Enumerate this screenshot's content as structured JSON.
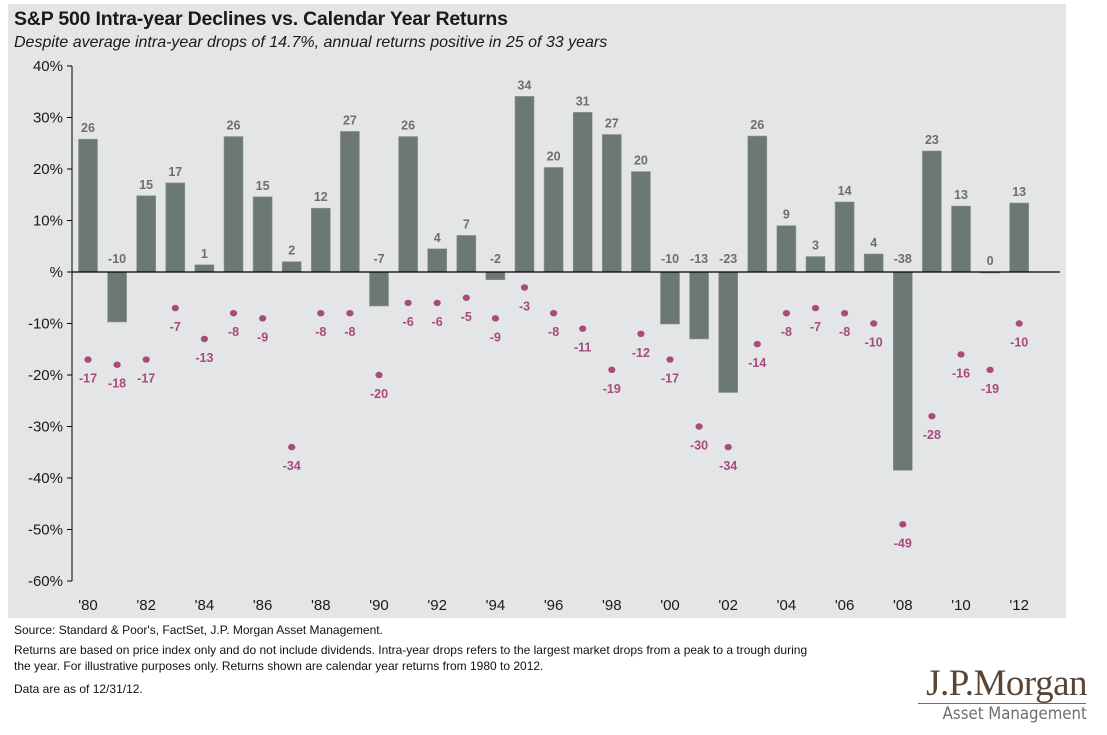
{
  "colors": {
    "panel_bg": "#e4e5e7",
    "bar": "#6b7875",
    "bar_label": "#6e6e6e",
    "dot": "#a84a7b",
    "axis": "#000000"
  },
  "chart_data": {
    "type": "bar",
    "title": "S&P 500 Intra-year Declines vs. Calendar Year Returns",
    "subtitle": "Despite average intra-year drops of 14.7%, annual returns positive in 25 of 33 years",
    "xlabel": "",
    "ylabel": "",
    "ylim": [
      -60,
      40
    ],
    "grid": false,
    "yticks": [
      40,
      30,
      20,
      10,
      0,
      -10,
      -20,
      -30,
      -40,
      -50,
      -60
    ],
    "ytick_labels": [
      "40%",
      "30%",
      "20%",
      "10%",
      "%",
      "-10%",
      "-20%",
      "-30%",
      "-40%",
      "-50%",
      "-60%"
    ],
    "years": [
      1980,
      1981,
      1982,
      1983,
      1984,
      1985,
      1986,
      1987,
      1988,
      1989,
      1990,
      1991,
      1992,
      1993,
      1994,
      1995,
      1996,
      1997,
      1998,
      1999,
      2000,
      2001,
      2002,
      2003,
      2004,
      2005,
      2006,
      2007,
      2008,
      2009,
      2010,
      2011,
      2012
    ],
    "xtick_labels": [
      {
        "year": 1980,
        "label": "'80"
      },
      {
        "year": 1982,
        "label": "'82"
      },
      {
        "year": 1984,
        "label": "'84"
      },
      {
        "year": 1986,
        "label": "'86"
      },
      {
        "year": 1988,
        "label": "'88"
      },
      {
        "year": 1990,
        "label": "'90"
      },
      {
        "year": 1992,
        "label": "'92"
      },
      {
        "year": 1994,
        "label": "'94"
      },
      {
        "year": 1996,
        "label": "'96"
      },
      {
        "year": 1998,
        "label": "'98"
      },
      {
        "year": 2000,
        "label": "'00"
      },
      {
        "year": 2002,
        "label": "'02"
      },
      {
        "year": 2004,
        "label": "'04"
      },
      {
        "year": 2006,
        "label": "'06"
      },
      {
        "year": 2008,
        "label": "'08"
      },
      {
        "year": 2010,
        "label": "'10"
      },
      {
        "year": 2012,
        "label": "'12"
      }
    ],
    "series": [
      {
        "name": "Calendar year return",
        "kind": "bar",
        "values": [
          25.8,
          -9.7,
          14.8,
          17.3,
          1.4,
          26.3,
          14.6,
          2.0,
          12.4,
          27.3,
          -6.6,
          26.3,
          4.5,
          7.1,
          -1.5,
          34.1,
          20.3,
          31.0,
          26.7,
          19.5,
          -10.1,
          -13.0,
          -23.4,
          26.4,
          9.0,
          3.0,
          13.6,
          3.5,
          -38.5,
          23.5,
          12.8,
          0.0,
          13.4
        ],
        "labels": [
          "26",
          "-10",
          "15",
          "17",
          "1",
          "26",
          "15",
          "2",
          "12",
          "27",
          "-7",
          "26",
          "4",
          "7",
          "-2",
          "34",
          "20",
          "31",
          "27",
          "20",
          "-10",
          "-13",
          "-23",
          "26",
          "9",
          "3",
          "14",
          "4",
          "-38",
          "23",
          "13",
          "0",
          "13"
        ]
      },
      {
        "name": "Intra-year decline",
        "kind": "scatter",
        "values": [
          -17,
          -18,
          -17,
          -7,
          -13,
          -8,
          -9,
          -34,
          -8,
          -8,
          -20,
          -6,
          -6,
          -5,
          -9,
          -3,
          -8,
          -11,
          -19,
          -12,
          -17,
          -30,
          -34,
          -14,
          -8,
          -7,
          -8,
          -10,
          -49,
          -28,
          -16,
          -19,
          -10
        ],
        "labels": [
          "-17",
          "-18",
          "-17",
          "-7",
          "-13",
          "-8",
          "-9",
          "-34",
          "-8",
          "-8",
          "-20",
          "-6",
          "-6",
          "-5",
          "-9",
          "-3",
          "-8",
          "-11",
          "-19",
          "-12",
          "-17",
          "-30",
          "-34",
          "-14",
          "-8",
          "-7",
          "-8",
          "-10",
          "-49",
          "-28",
          "-16",
          "-19",
          "-10"
        ]
      }
    ]
  },
  "footnotes": {
    "source": "Source: Standard & Poor's, FactSet, J.P. Morgan Asset Management.",
    "note_line1": "Returns are based on price index only and do not include dividends. Intra-year drops refers to the largest market drops from a peak to a trough during",
    "note_line2": "the year. For illustrative purposes only. Returns shown are calendar year returns from 1980 to 2012.",
    "as_of": "Data are as of 12/31/12."
  },
  "logo": {
    "brand": "J.P.Morgan",
    "division": "Asset Management"
  }
}
